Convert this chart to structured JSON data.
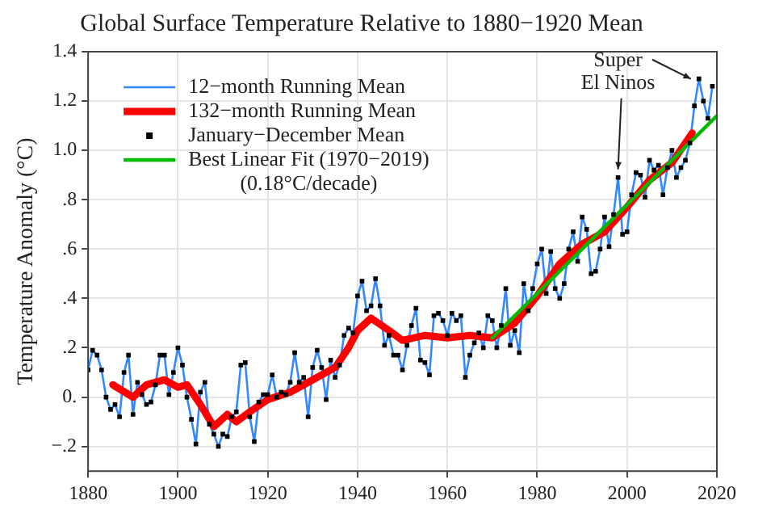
{
  "chart_data": {
    "type": "line",
    "title": "Global Surface Temperature Relative to 1880−1920 Mean",
    "ylabel": "Temperature Anomaly (°C)",
    "x": [
      1880,
      1881,
      1882,
      1883,
      1884,
      1885,
      1886,
      1887,
      1888,
      1889,
      1890,
      1891,
      1892,
      1893,
      1894,
      1895,
      1896,
      1897,
      1898,
      1899,
      1900,
      1901,
      1902,
      1903,
      1904,
      1905,
      1906,
      1907,
      1908,
      1909,
      1910,
      1911,
      1912,
      1913,
      1914,
      1915,
      1916,
      1917,
      1918,
      1919,
      1920,
      1921,
      1922,
      1923,
      1924,
      1925,
      1926,
      1927,
      1928,
      1929,
      1930,
      1931,
      1932,
      1933,
      1934,
      1935,
      1936,
      1937,
      1938,
      1939,
      1940,
      1941,
      1942,
      1943,
      1944,
      1945,
      1946,
      1947,
      1948,
      1949,
      1950,
      1951,
      1952,
      1953,
      1954,
      1955,
      1956,
      1957,
      1958,
      1959,
      1960,
      1961,
      1962,
      1963,
      1964,
      1965,
      1966,
      1967,
      1968,
      1969,
      1970,
      1971,
      1972,
      1973,
      1974,
      1975,
      1976,
      1977,
      1978,
      1979,
      1980,
      1981,
      1982,
      1983,
      1984,
      1985,
      1986,
      1987,
      1988,
      1989,
      1990,
      1991,
      1992,
      1993,
      1994,
      1995,
      1996,
      1997,
      1998,
      1999,
      2000,
      2001,
      2002,
      2003,
      2004,
      2005,
      2006,
      2007,
      2008,
      2009,
      2010,
      2011,
      2012,
      2013,
      2014,
      2015,
      2016,
      2017,
      2018,
      2019
    ],
    "series": [
      {
        "name": "12−month Running Mean",
        "color": "#3388ff",
        "type": "line",
        "marker": "none",
        "values": [
          0.11,
          0.19,
          0.17,
          0.11,
          0.0,
          -0.05,
          -0.03,
          -0.08,
          0.1,
          0.17,
          -0.07,
          0.06,
          0.01,
          -0.03,
          -0.02,
          0.05,
          0.17,
          0.17,
          0.01,
          0.1,
          0.2,
          0.13,
          0.0,
          -0.09,
          -0.19,
          0.02,
          0.06,
          -0.11,
          -0.15,
          -0.2,
          -0.15,
          -0.16,
          -0.08,
          -0.06,
          0.13,
          0.14,
          -0.08,
          -0.18,
          -0.02,
          0.01,
          0.01,
          0.09,
          0.0,
          0.02,
          0.01,
          0.06,
          0.18,
          0.06,
          0.08,
          -0.08,
          0.12,
          0.19,
          0.12,
          -0.01,
          0.15,
          0.08,
          0.13,
          0.25,
          0.28,
          0.26,
          0.41,
          0.47,
          0.35,
          0.37,
          0.48,
          0.37,
          0.21,
          0.25,
          0.17,
          0.17,
          0.11,
          0.21,
          0.29,
          0.36,
          0.15,
          0.14,
          0.09,
          0.33,
          0.34,
          0.31,
          0.25,
          0.34,
          0.31,
          0.33,
          0.08,
          0.17,
          0.22,
          0.26,
          0.2,
          0.33,
          0.31,
          0.2,
          0.29,
          0.44,
          0.21,
          0.27,
          0.18,
          0.46,
          0.35,
          0.44,
          0.54,
          0.6,
          0.42,
          0.59,
          0.44,
          0.4,
          0.46,
          0.6,
          0.67,
          0.55,
          0.73,
          0.68,
          0.5,
          0.51,
          0.6,
          0.73,
          0.61,
          0.74,
          0.89,
          0.66,
          0.67,
          0.82,
          0.91,
          0.9,
          0.81,
          0.96,
          0.92,
          0.94,
          0.82,
          0.93,
          1.0,
          0.89,
          0.93,
          0.96,
          1.03,
          1.18,
          1.29,
          1.2,
          1.13,
          1.26
        ]
      },
      {
        "name": "132−month Running Mean",
        "color": "#ff0000",
        "type": "line",
        "marker": "none",
        "x": [
          1885.5,
          1890,
          1893,
          1897,
          1900,
          1902,
          1905,
          1908,
          1911,
          1913,
          1916,
          1920,
          1925,
          1930,
          1935,
          1938,
          1940,
          1943,
          1947,
          1950,
          1955,
          1960,
          1965,
          1970,
          1975,
          1980,
          1985,
          1990,
          1995,
          2000,
          2005,
          2010,
          2014.5
        ],
        "values": [
          0.05,
          0.0,
          0.05,
          0.07,
          0.04,
          0.05,
          -0.03,
          -0.12,
          -0.07,
          -0.1,
          -0.06,
          -0.01,
          0.02,
          0.07,
          0.12,
          0.2,
          0.27,
          0.32,
          0.27,
          0.23,
          0.25,
          0.24,
          0.25,
          0.24,
          0.3,
          0.41,
          0.54,
          0.62,
          0.67,
          0.77,
          0.88,
          0.95,
          1.07
        ]
      },
      {
        "name": "January−December Mean",
        "color": "#000000",
        "type": "scatter",
        "marker": "square",
        "values": [
          0.11,
          0.19,
          0.17,
          0.11,
          0.0,
          -0.05,
          -0.03,
          -0.08,
          0.1,
          0.17,
          -0.07,
          0.06,
          0.01,
          -0.03,
          -0.02,
          0.05,
          0.17,
          0.17,
          0.01,
          0.1,
          0.2,
          0.13,
          0.0,
          -0.09,
          -0.19,
          0.02,
          0.06,
          -0.11,
          -0.15,
          -0.2,
          -0.15,
          -0.16,
          -0.08,
          -0.06,
          0.13,
          0.14,
          -0.08,
          -0.18,
          -0.02,
          0.01,
          0.01,
          0.09,
          0.0,
          0.02,
          0.01,
          0.06,
          0.18,
          0.06,
          0.08,
          -0.08,
          0.12,
          0.19,
          0.12,
          -0.01,
          0.15,
          0.08,
          0.13,
          0.25,
          0.28,
          0.26,
          0.41,
          0.47,
          0.35,
          0.37,
          0.48,
          0.37,
          0.21,
          0.25,
          0.17,
          0.17,
          0.11,
          0.21,
          0.29,
          0.36,
          0.15,
          0.14,
          0.09,
          0.33,
          0.34,
          0.31,
          0.25,
          0.34,
          0.31,
          0.33,
          0.08,
          0.17,
          0.22,
          0.26,
          0.2,
          0.33,
          0.31,
          0.2,
          0.29,
          0.44,
          0.21,
          0.27,
          0.18,
          0.46,
          0.35,
          0.44,
          0.54,
          0.6,
          0.42,
          0.59,
          0.44,
          0.4,
          0.46,
          0.6,
          0.67,
          0.55,
          0.73,
          0.68,
          0.5,
          0.51,
          0.6,
          0.73,
          0.61,
          0.74,
          0.89,
          0.66,
          0.67,
          0.82,
          0.91,
          0.9,
          0.81,
          0.96,
          0.92,
          0.94,
          0.82,
          0.93,
          1.0,
          0.89,
          0.93,
          0.96,
          1.03,
          1.18,
          1.29,
          1.2,
          1.13,
          1.26
        ]
      },
      {
        "name": "Best Linear Fit (1970−2019)\n(0.18°C/decade)",
        "color": "#00bb00",
        "type": "line",
        "marker": "none",
        "x": [
          1970,
          2020
        ],
        "values": [
          0.24,
          1.14
        ]
      }
    ],
    "xlim": [
      1880,
      2020
    ],
    "xticks": [
      1880,
      1900,
      1920,
      1940,
      1960,
      1980,
      2000,
      2020
    ],
    "ylim": [
      -0.3,
      1.4
    ],
    "yticks": [
      {
        "value": -0.2,
        "label": "−.2"
      },
      {
        "value": 0,
        "label": "0."
      },
      {
        "value": 0.2,
        "label": ".2"
      },
      {
        "value": 0.4,
        "label": ".4"
      },
      {
        "value": 0.6,
        "label": ".6"
      },
      {
        "value": 0.8,
        "label": ".8"
      },
      {
        "value": 1.0,
        "label": "1.0"
      },
      {
        "value": 1.2,
        "label": "1.2"
      },
      {
        "value": 1.4,
        "label": "1.4"
      }
    ],
    "grid": true,
    "legend": "top left",
    "annotations": [
      {
        "text": "Super El Ninos",
        "x": 1998,
        "y": 0.89
      }
    ]
  }
}
